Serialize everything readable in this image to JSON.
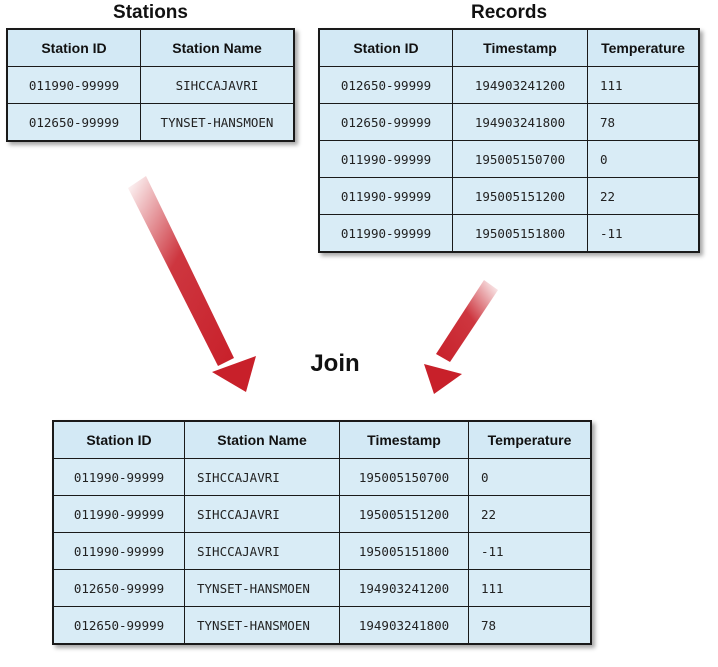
{
  "stations": {
    "title": "Stations",
    "headers": [
      "Station ID",
      "Station Name"
    ],
    "rows": [
      [
        "011990-99999",
        "SIHCCAJAVRI"
      ],
      [
        "012650-99999",
        "TYNSET-HANSMOEN"
      ]
    ]
  },
  "records": {
    "title": "Records",
    "headers": [
      "Station ID",
      "Timestamp",
      "Temperature"
    ],
    "rows": [
      [
        "012650-99999",
        "194903241200",
        "111"
      ],
      [
        "012650-99999",
        "194903241800",
        "78"
      ],
      [
        "011990-99999",
        "195005150700",
        "0"
      ],
      [
        "011990-99999",
        "195005151200",
        "22"
      ],
      [
        "011990-99999",
        "195005151800",
        "-11"
      ]
    ]
  },
  "join": {
    "title": "Join",
    "headers": [
      "Station ID",
      "Station Name",
      "Timestamp",
      "Temperature"
    ],
    "rows": [
      [
        "011990-99999",
        "SIHCCAJAVRI",
        "195005150700",
        "0"
      ],
      [
        "011990-99999",
        "SIHCCAJAVRI",
        "195005151200",
        "22"
      ],
      [
        "011990-99999",
        "SIHCCAJAVRI",
        "195005151800",
        "-11"
      ],
      [
        "012650-99999",
        "TYNSET-HANSMOEN",
        "194903241200",
        "111"
      ],
      [
        "012650-99999",
        "TYNSET-HANSMOEN",
        "194903241800",
        "78"
      ]
    ]
  },
  "colors": {
    "table_fill": "#d9ecf6",
    "arrow": "#c8202a"
  }
}
